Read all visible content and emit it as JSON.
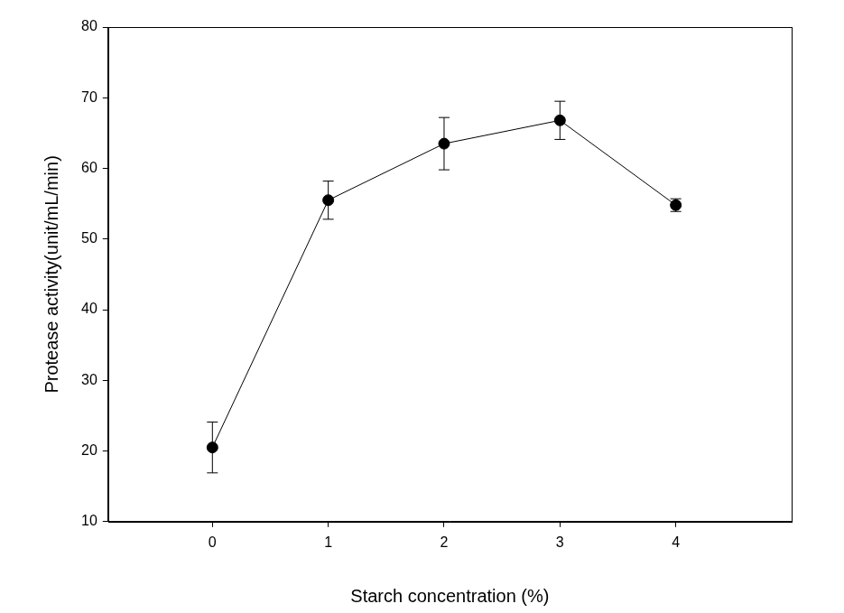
{
  "chart_data": {
    "type": "line",
    "x_label": "Starch concentration (%)",
    "y_label": "Protease activity(unit/mL/min)",
    "x": [
      0,
      1,
      2,
      3,
      4
    ],
    "values": [
      20.5,
      55.5,
      63.5,
      66.8,
      54.8
    ],
    "errors": [
      3.6,
      2.7,
      3.7,
      2.7,
      0.9
    ],
    "color": "#000000",
    "marker": "circle",
    "line_style": "solid",
    "xlim": [
      -0.9,
      5
    ],
    "xticks": [
      0,
      1,
      2,
      3,
      4
    ],
    "ylim": [
      10,
      80
    ],
    "yticks": [
      10,
      20,
      30,
      40,
      50,
      60,
      70,
      80
    ],
    "grid": false
  }
}
